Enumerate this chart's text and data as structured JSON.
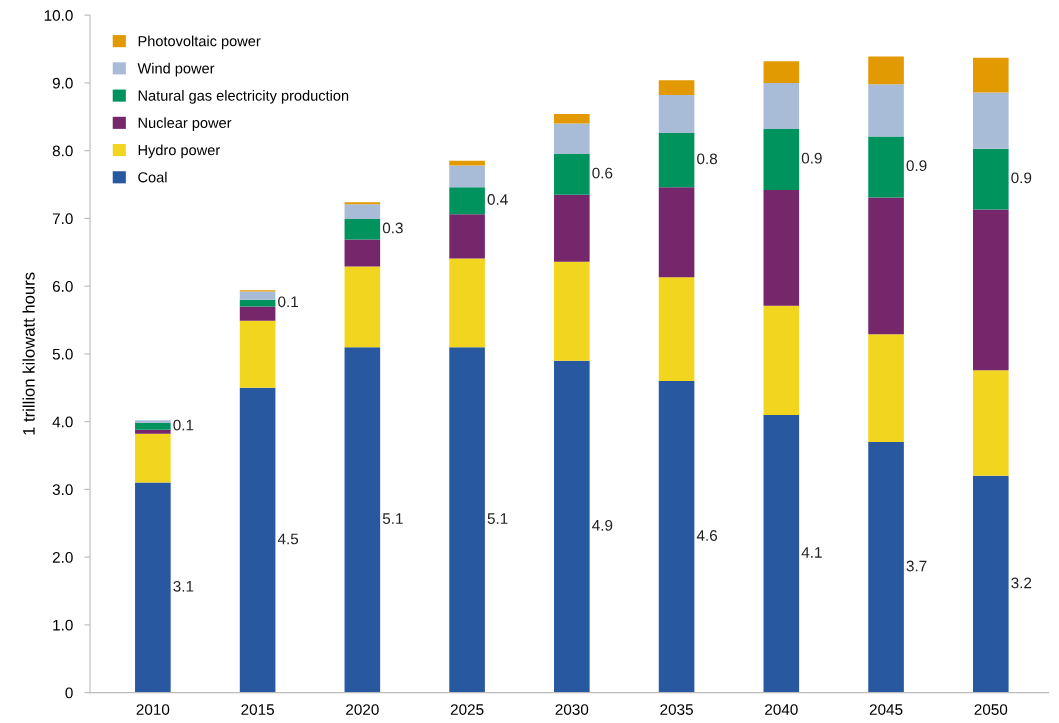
{
  "chart_data": {
    "type": "bar",
    "stacked": true,
    "ylabel": "1 trillion kilowatt hours",
    "categories": [
      "2010",
      "2015",
      "2020",
      "2025",
      "2030",
      "2035",
      "2040",
      "2045",
      "2050"
    ],
    "series": [
      {
        "name": "Coal",
        "color": "#2858a0",
        "values": [
          3.1,
          4.5,
          5.1,
          5.1,
          4.9,
          4.6,
          4.1,
          3.7,
          3.2
        ],
        "value_labels": [
          "3.1",
          "4.5",
          "5.1",
          "5.1",
          "4.9",
          "4.6",
          "4.1",
          "3.7",
          "3.2"
        ]
      },
      {
        "name": "Hydro power",
        "color": "#f2d51f",
        "values": [
          0.72,
          0.99,
          1.19,
          1.31,
          1.46,
          1.53,
          1.61,
          1.59,
          1.56
        ]
      },
      {
        "name": "Nuclear power",
        "color": "#76276c",
        "values": [
          0.06,
          0.21,
          0.4,
          0.65,
          0.99,
          1.33,
          1.71,
          2.02,
          2.37
        ]
      },
      {
        "name": "Natural gas electricity production",
        "color": "#00935e",
        "values": [
          0.1,
          0.1,
          0.3,
          0.4,
          0.6,
          0.8,
          0.9,
          0.9,
          0.9
        ],
        "value_labels": [
          "0.1",
          "0.1",
          "0.3",
          "0.4",
          "0.6",
          "0.8",
          "0.9",
          "0.9",
          "0.9"
        ]
      },
      {
        "name": "Wind power",
        "color": "#a8bcd8",
        "values": [
          0.04,
          0.12,
          0.22,
          0.32,
          0.45,
          0.56,
          0.68,
          0.77,
          0.83
        ]
      },
      {
        "name": "Photovoltaic power",
        "color": "#e39a02",
        "values": [
          null,
          0.02,
          0.03,
          0.07,
          0.14,
          0.22,
          0.32,
          0.41,
          0.51
        ]
      }
    ],
    "ylim": [
      0,
      10
    ],
    "yticks": [
      0,
      {
        "value": 1,
        "label": "1.0"
      },
      {
        "value": 2,
        "label": "2.0"
      },
      {
        "value": 3,
        "label": "3.0"
      },
      {
        "value": 4,
        "label": "4.0"
      },
      {
        "value": 5,
        "label": "5.0"
      },
      {
        "value": 6,
        "label": "6.0"
      },
      {
        "value": 7,
        "label": "7.0"
      },
      {
        "value": 8,
        "label": "8.0"
      },
      {
        "value": 9,
        "label": "9.0"
      },
      {
        "value": 10,
        "label": "10.0"
      }
    ],
    "grid": false,
    "legend": "top left"
  }
}
